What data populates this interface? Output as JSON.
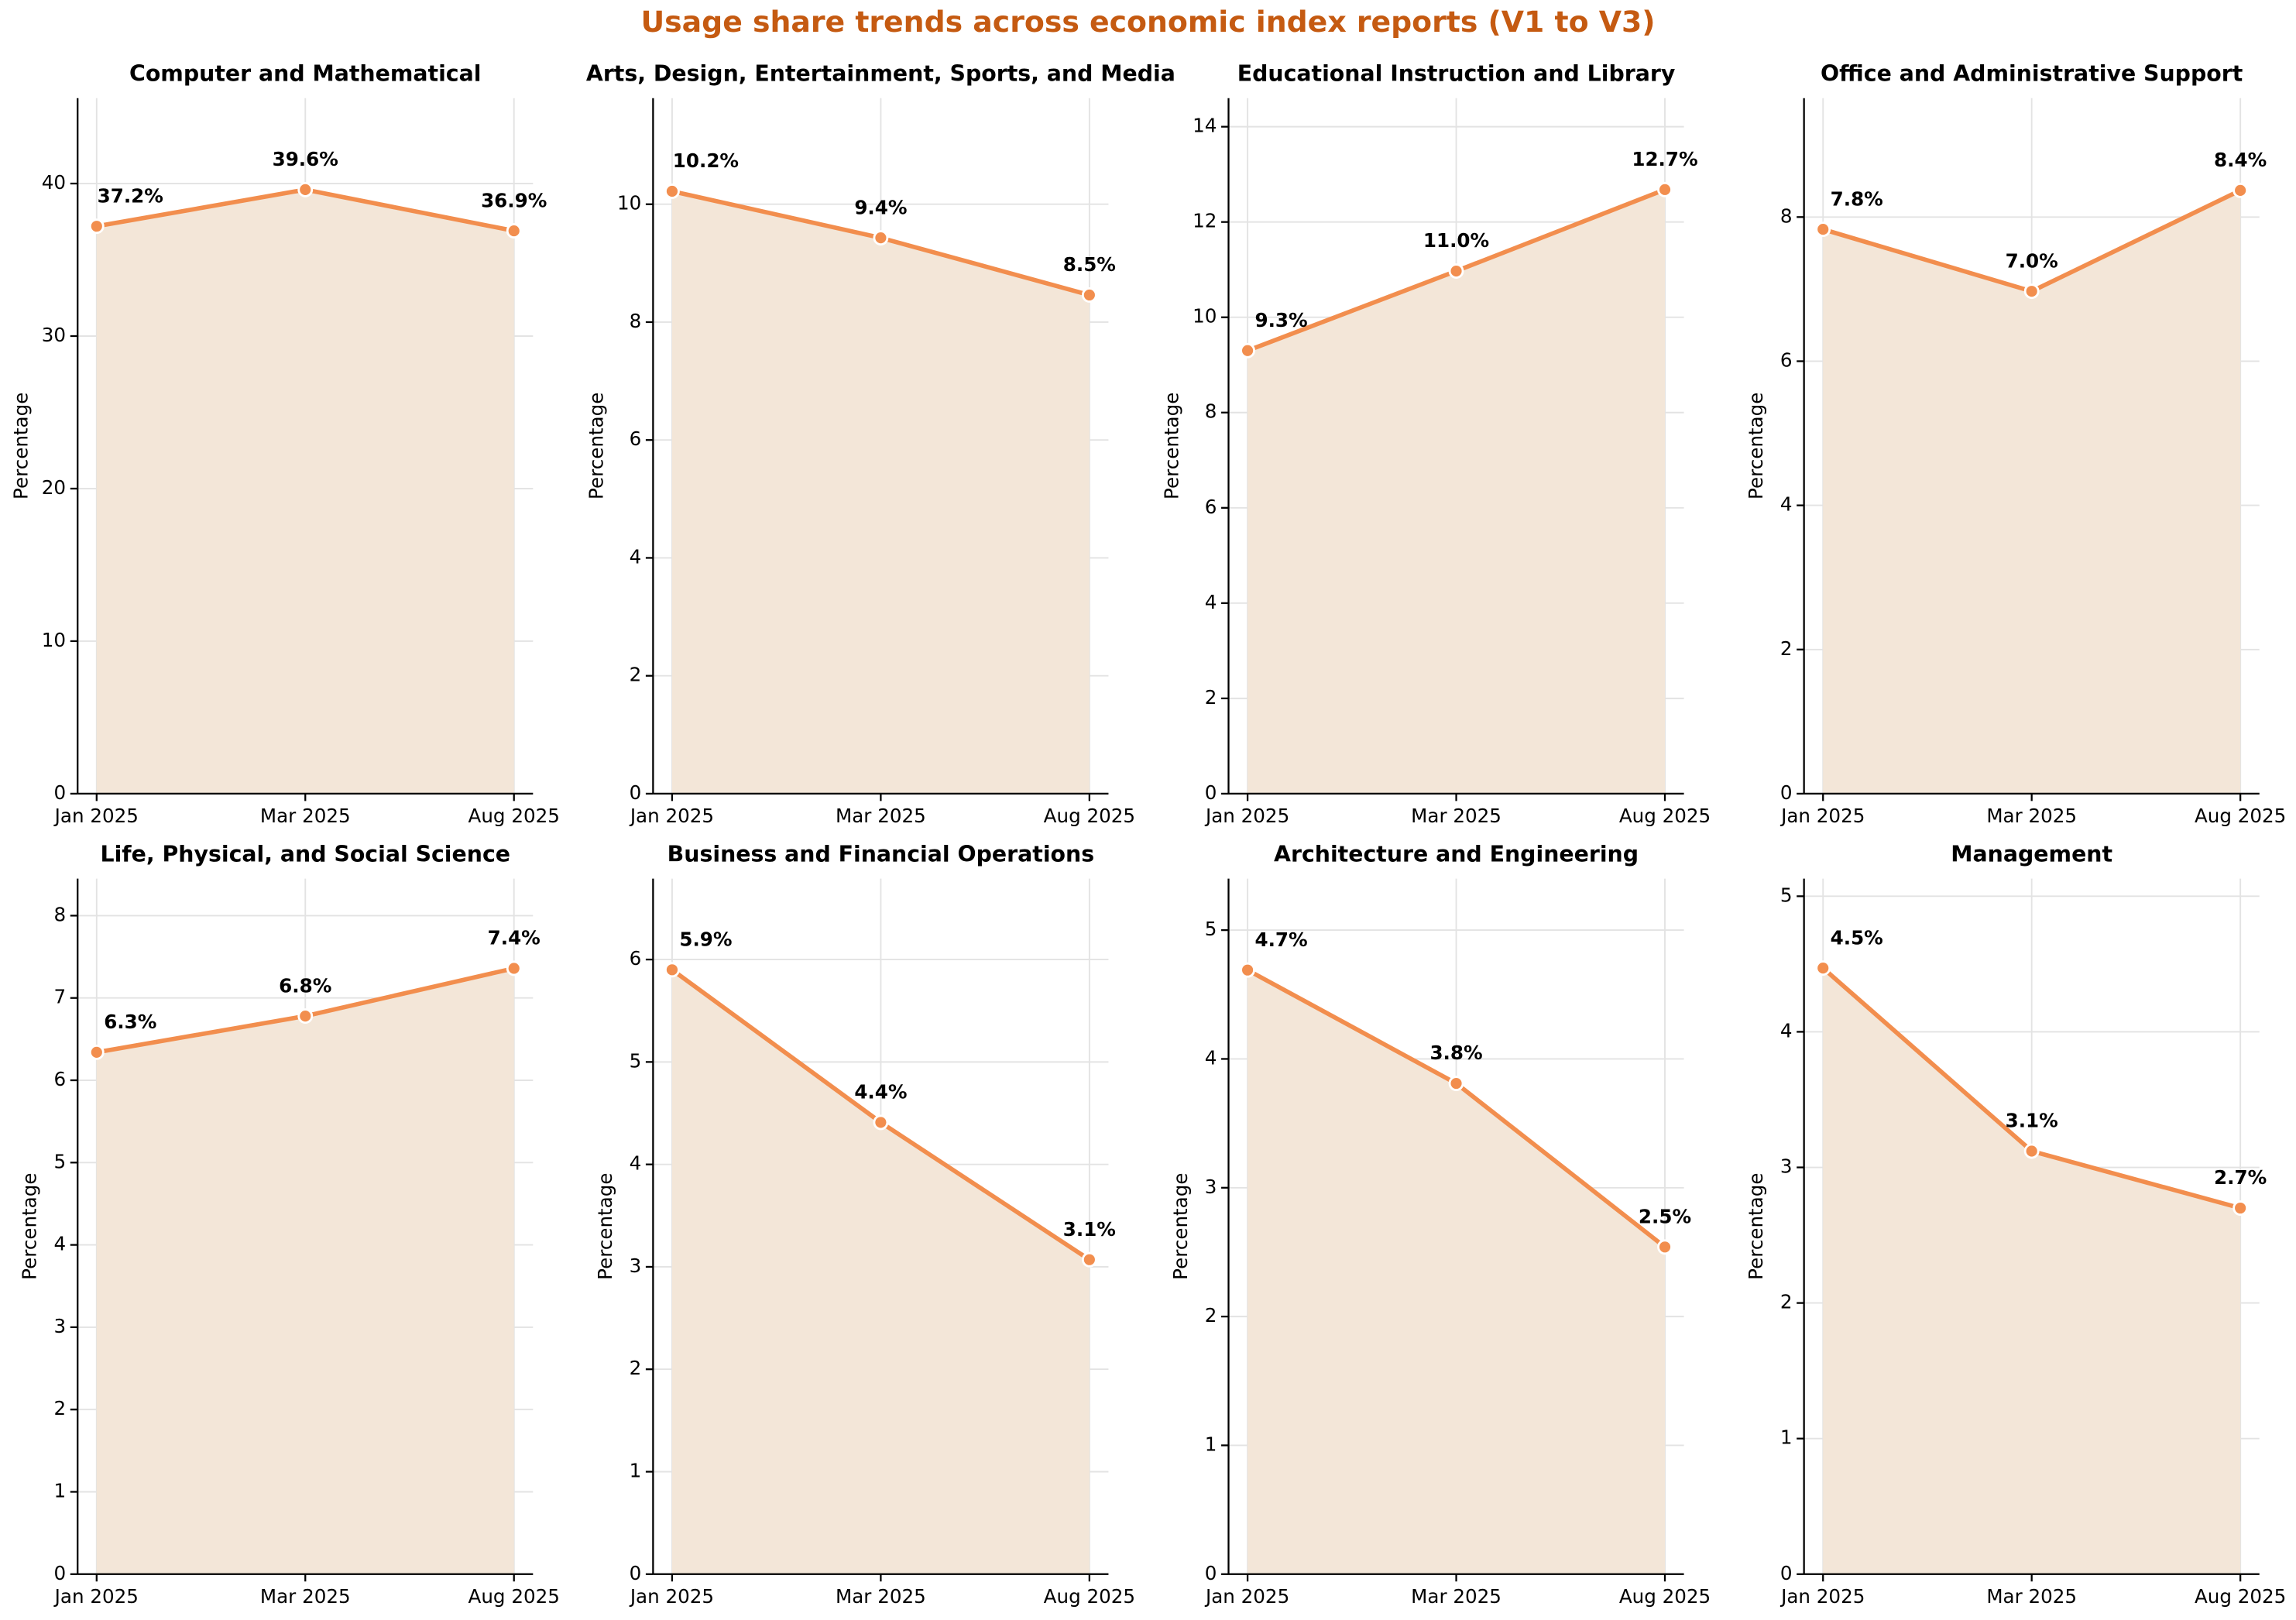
{
  "title": "Usage share trends across economic index reports (V1 to V3)",
  "chart_data": [
    {
      "type": "line",
      "title": "Computer and Mathematical",
      "ylabel": "Percentage",
      "categories": [
        "Jan 2025",
        "Mar 2025",
        "Aug 2025"
      ],
      "values": [
        37.2,
        39.6,
        36.9
      ],
      "value_labels": [
        "37.2%",
        "39.6%",
        "36.9%"
      ],
      "color": "#f28e4e",
      "fill": "#f3e6d8",
      "ylim": [
        0,
        45.6
      ],
      "yticks": [
        0,
        10,
        20,
        30,
        40
      ],
      "grid": true
    },
    {
      "type": "line",
      "title": "Arts, Design, Entertainment, Sports, and Media",
      "ylabel": "Percentage",
      "categories": [
        "Jan 2025",
        "Mar 2025",
        "Aug 2025"
      ],
      "values": [
        10.22,
        9.43,
        8.46
      ],
      "value_labels": [
        "10.2%",
        "9.4%",
        "8.5%"
      ],
      "color": "#f28e4e",
      "fill": "#f3e6d8",
      "ylim": [
        0,
        11.8
      ],
      "yticks": [
        0,
        2,
        4,
        6,
        8,
        10
      ],
      "grid": true
    },
    {
      "type": "line",
      "title": "Educational Instruction and Library",
      "ylabel": "Percentage",
      "categories": [
        "Jan 2025",
        "Mar 2025",
        "Aug 2025"
      ],
      "values": [
        9.3,
        10.97,
        12.68
      ],
      "value_labels": [
        "9.3%",
        "11.0%",
        "12.7%"
      ],
      "color": "#f28e4e",
      "fill": "#f3e6d8",
      "ylim": [
        0,
        14.6
      ],
      "yticks": [
        0,
        2,
        4,
        6,
        8,
        10,
        12,
        14
      ],
      "grid": true
    },
    {
      "type": "line",
      "title": "Office and Administrative Support",
      "ylabel": "Percentage",
      "categories": [
        "Jan 2025",
        "Mar 2025",
        "Aug 2025"
      ],
      "values": [
        7.83,
        6.97,
        8.37
      ],
      "value_labels": [
        "7.8%",
        "7.0%",
        "8.4%"
      ],
      "color": "#f28e4e",
      "fill": "#f3e6d8",
      "ylim": [
        0,
        9.65
      ],
      "yticks": [
        0,
        2,
        4,
        6,
        8
      ],
      "grid": true
    },
    {
      "type": "line",
      "title": "Life, Physical, and Social Science",
      "ylabel": "Percentage",
      "categories": [
        "Jan 2025",
        "Mar 2025",
        "Aug 2025"
      ],
      "values": [
        6.34,
        6.78,
        7.36
      ],
      "value_labels": [
        "6.3%",
        "6.8%",
        "7.4%"
      ],
      "color": "#f28e4e",
      "fill": "#f3e6d8",
      "ylim": [
        0,
        8.45
      ],
      "yticks": [
        0,
        1,
        2,
        3,
        4,
        5,
        6,
        7,
        8
      ],
      "grid": true
    },
    {
      "type": "line",
      "title": "Business and Financial Operations",
      "ylabel": "Percentage",
      "categories": [
        "Jan 2025",
        "Mar 2025",
        "Aug 2025"
      ],
      "values": [
        5.9,
        4.41,
        3.07
      ],
      "value_labels": [
        "5.9%",
        "4.4%",
        "3.1%"
      ],
      "color": "#f28e4e",
      "fill": "#f3e6d8",
      "ylim": [
        0,
        6.79
      ],
      "yticks": [
        0,
        1,
        2,
        3,
        4,
        5,
        6
      ],
      "grid": true
    },
    {
      "type": "line",
      "title": "Architecture and Engineering",
      "ylabel": "Percentage",
      "categories": [
        "Jan 2025",
        "Mar 2025",
        "Aug 2025"
      ],
      "values": [
        4.69,
        3.81,
        2.54
      ],
      "value_labels": [
        "4.7%",
        "3.8%",
        "2.5%"
      ],
      "color": "#f28e4e",
      "fill": "#f3e6d8",
      "ylim": [
        0,
        5.4
      ],
      "yticks": [
        0,
        1,
        2,
        3,
        4,
        5
      ],
      "grid": true
    },
    {
      "type": "line",
      "title": "Management",
      "ylabel": "Percentage",
      "categories": [
        "Jan 2025",
        "Mar 2025",
        "Aug 2025"
      ],
      "values": [
        4.47,
        3.12,
        2.7
      ],
      "value_labels": [
        "4.5%",
        "3.1%",
        "2.7%"
      ],
      "color": "#f28e4e",
      "fill": "#f3e6d8",
      "ylim": [
        0,
        5.13
      ],
      "yticks": [
        0,
        1,
        2,
        3,
        4,
        5
      ],
      "grid": true
    }
  ]
}
